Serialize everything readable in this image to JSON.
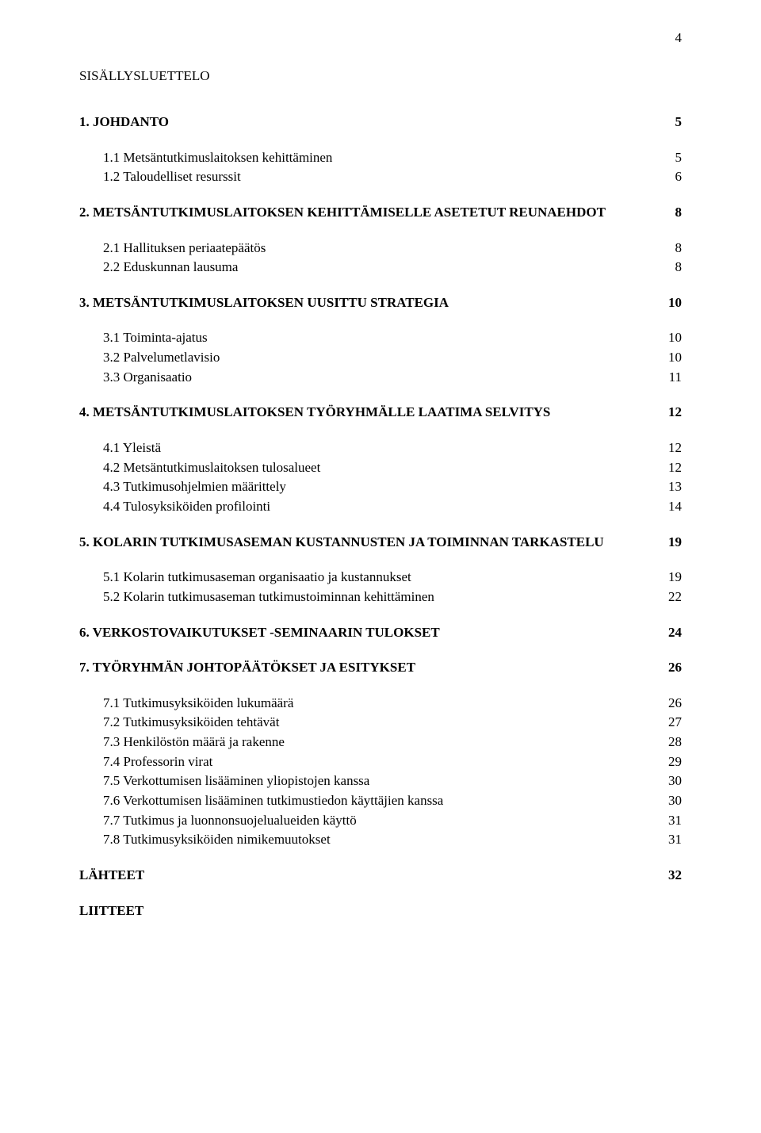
{
  "pageNumber": "4",
  "title": "SISÄLLYSLUETTELO",
  "sections": [
    {
      "head": {
        "label": "1. JOHDANTO",
        "page": "5"
      },
      "subs": [
        {
          "label": "1.1 Metsäntutkimuslaitoksen kehittäminen",
          "page": "5"
        },
        {
          "label": "1.2 Taloudelliset resurssit",
          "page": "6"
        }
      ]
    },
    {
      "head": {
        "label": "2. METSÄNTUTKIMUSLAITOKSEN KEHITTÄMISELLE ASETETUT REUNAEHDOT",
        "page": "8"
      },
      "subs": [
        {
          "label": "2.1 Hallituksen periaatepäätös",
          "page": "8"
        },
        {
          "label": "2.2 Eduskunnan lausuma",
          "page": "8"
        }
      ]
    },
    {
      "head": {
        "label": "3. METSÄNTUTKIMUSLAITOKSEN UUSITTU STRATEGIA",
        "page": "10"
      },
      "subs": [
        {
          "label": "3.1 Toiminta-ajatus",
          "page": "10"
        },
        {
          "label": "3.2 Palvelumetlavisio",
          "page": "10"
        },
        {
          "label": "3.3 Organisaatio",
          "page": "11"
        }
      ]
    },
    {
      "head": {
        "label": "4. METSÄNTUTKIMUSLAITOKSEN TYÖRYHMÄLLE LAATIMA SELVITYS",
        "page": "12"
      },
      "subs": [
        {
          "label": "4.1 Yleistä",
          "page": "12"
        },
        {
          "label": "4.2 Metsäntutkimuslaitoksen tulosalueet",
          "page": "12"
        },
        {
          "label": "4.3 Tutkimusohjelmien määrittely",
          "page": "13"
        },
        {
          "label": "4.4 Tulosyksiköiden profilointi",
          "page": "14"
        }
      ]
    },
    {
      "head": {
        "label": "5. KOLARIN TUTKIMUSASEMAN KUSTANNUSTEN JA TOIMINNAN TARKASTELU",
        "page": "19"
      },
      "subs": [
        {
          "label": "5.1 Kolarin tutkimusaseman organisaatio ja kustannukset",
          "page": "19"
        },
        {
          "label": "5.2 Kolarin tutkimusaseman tutkimustoiminnan kehittäminen",
          "page": "22"
        }
      ]
    },
    {
      "head": {
        "label": "6. VERKOSTOVAIKUTUKSET -SEMINAARIN TULOKSET",
        "page": "24"
      },
      "subs": []
    },
    {
      "head": {
        "label": "7. TYÖRYHMÄN JOHTOPÄÄTÖKSET JA ESITYKSET",
        "page": "26"
      },
      "subs": [
        {
          "label": "7.1 Tutkimusyksiköiden lukumäärä",
          "page": "26"
        },
        {
          "label": "7.2 Tutkimusyksiköiden tehtävät",
          "page": "27"
        },
        {
          "label": "7.3 Henkilöstön määrä ja rakenne",
          "page": "28"
        },
        {
          "label": "7.4 Professorin virat",
          "page": "29"
        },
        {
          "label": "7.5 Verkottumisen lisääminen yliopistojen kanssa",
          "page": "30"
        },
        {
          "label": "7.6 Verkottumisen lisääminen tutkimustiedon käyttäjien kanssa",
          "page": "30"
        },
        {
          "label": "7.7 Tutkimus ja luonnonsuojelualueiden käyttö",
          "page": "31"
        },
        {
          "label": "7.8 Tutkimusyksiköiden nimikemuutokset",
          "page": "31"
        }
      ]
    },
    {
      "head": {
        "label": "LÄHTEET",
        "page": "32"
      },
      "subs": []
    },
    {
      "head": {
        "label": "LIITTEET",
        "page": ""
      },
      "subs": []
    }
  ]
}
